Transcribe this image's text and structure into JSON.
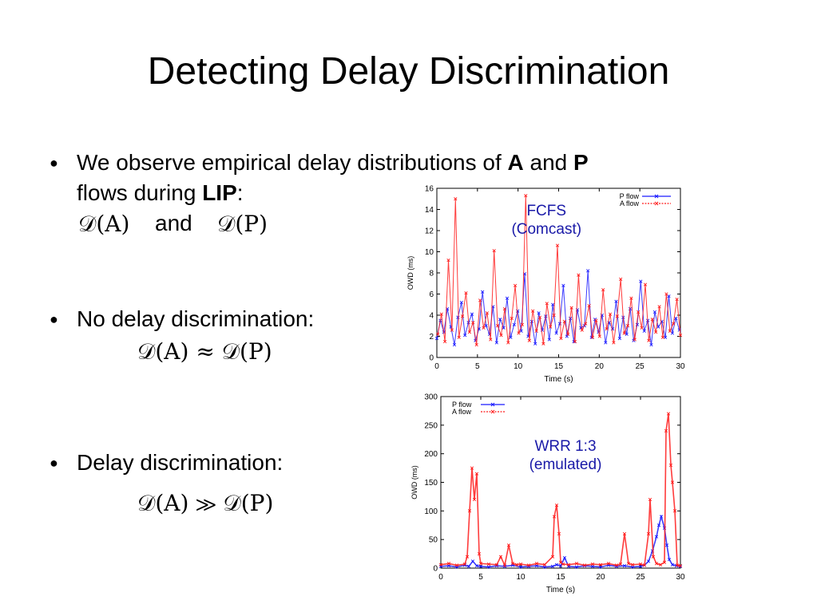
{
  "slide": {
    "title": "Detecting Delay Discrimination",
    "bullet1": {
      "text_before": "We observe empirical delay distributions of ",
      "bold_a": "A",
      "text_and": " and ",
      "bold_p": "P",
      "line2_before": "flows during ",
      "bold_lip": "LIP",
      "colon": ":",
      "math_a": "𝒟(A)",
      "and_word": "and",
      "math_p": "𝒟(P)"
    },
    "bullet2": {
      "text": "No delay discrimination:",
      "math": "𝒟(A) ≈ 𝒟(P)"
    },
    "bullet3": {
      "text": "Delay discrimination:",
      "math": "𝒟(A) ≫ 𝒟(P)"
    },
    "bullet_symbol": "●"
  },
  "colors": {
    "p_flow": "#1a1aff",
    "a_flow": "#ff1a1a",
    "annotation": "#1a1aa8"
  },
  "chart_data": [
    {
      "type": "line",
      "annotation": [
        "FCFS",
        "(Comcast)"
      ],
      "xlabel": "Time (s)",
      "ylabel": "OWD (ms)",
      "xlim": [
        0,
        30
      ],
      "ylim": [
        0,
        16
      ],
      "xticks": [
        "0",
        "5",
        "10",
        "15",
        "20",
        "25",
        "30"
      ],
      "yticks": [
        "0",
        "2",
        "4",
        "6",
        "8",
        "10",
        "12",
        "14",
        "16"
      ],
      "legend": "top-right",
      "series": [
        {
          "name": "P flow",
          "color": "#1a1aff",
          "values": [
            1.8,
            3.5,
            2.4,
            4.6,
            2.9,
            1.2,
            3.8,
            5.2,
            2.1,
            3.3,
            4.1,
            1.6,
            2.7,
            6.2,
            3.0,
            2.2,
            4.8,
            1.4,
            3.6,
            2.8,
            5.6,
            1.9,
            3.1,
            4.4,
            2.5,
            7.9,
            2.0,
            3.4,
            1.3,
            4.2,
            2.6,
            3.9,
            1.7,
            5.0,
            2.3,
            3.2,
            6.8,
            2.0,
            3.7,
            1.5,
            4.5,
            2.8,
            3.0,
            8.2,
            1.9,
            3.6,
            2.4,
            4.0,
            1.4,
            3.3,
            2.7,
            5.3,
            1.8,
            3.8,
            2.2,
            4.6,
            1.6,
            3.1,
            7.2,
            2.5,
            3.5,
            1.2,
            4.3,
            2.9,
            3.4,
            1.9,
            5.8,
            2.3,
            3.7,
            2.6
          ]
        },
        {
          "name": "A flow",
          "color": "#ff1a1a",
          "values": [
            2.2,
            4.1,
            1.5,
            9.2,
            2.6,
            15.0,
            1.9,
            3.9,
            6.1,
            2.4,
            3.3,
            1.2,
            5.4,
            2.8,
            4.2,
            1.7,
            10.1,
            3.0,
            2.1,
            4.6,
            1.4,
            3.7,
            6.8,
            2.3,
            3.1,
            15.3,
            1.6,
            4.4,
            2.5,
            3.8,
            1.3,
            5.1,
            2.9,
            4.0,
            10.6,
            1.8,
            3.4,
            2.2,
            4.7,
            1.5,
            7.8,
            2.6,
            3.2,
            4.9,
            1.9,
            3.5,
            2.0,
            6.4,
            2.7,
            4.1,
            1.4,
            3.9,
            7.4,
            2.3,
            3.0,
            5.6,
            1.7,
            4.3,
            2.8,
            6.9,
            1.6,
            3.6,
            2.4,
            4.8,
            1.9,
            6.0,
            2.5,
            3.2,
            5.5,
            2.1
          ]
        }
      ]
    },
    {
      "type": "line",
      "annotation": [
        "WRR 1:3",
        "(emulated)"
      ],
      "xlabel": "Time (s)",
      "ylabel": "OWD (ms)",
      "xlim": [
        0,
        30
      ],
      "ylim": [
        0,
        300
      ],
      "xticks": [
        "0",
        "5",
        "10",
        "15",
        "20",
        "25",
        "30"
      ],
      "yticks": [
        "0",
        "50",
        "100",
        "150",
        "200",
        "250",
        "300"
      ],
      "legend": "top-left",
      "series": [
        {
          "name": "P flow",
          "color": "#1a1aff",
          "x": [
            0,
            1,
            2,
            3,
            3.5,
            4,
            4.5,
            5,
            6,
            7,
            8,
            9,
            10,
            11,
            12,
            13,
            14,
            14.5,
            15,
            15.5,
            16,
            17,
            18,
            19,
            20,
            21,
            22,
            23,
            24,
            25,
            25.5,
            26,
            26.5,
            27,
            27.3,
            27.6,
            28,
            28.3,
            28.6,
            29,
            29.5,
            30
          ],
          "y": [
            3,
            4,
            2,
            5,
            3,
            12,
            4,
            3,
            2,
            4,
            3,
            5,
            2,
            3,
            4,
            2,
            3,
            6,
            4,
            18,
            3,
            2,
            4,
            3,
            2,
            5,
            3,
            4,
            2,
            3,
            5,
            12,
            30,
            55,
            75,
            90,
            70,
            40,
            15,
            6,
            4,
            3
          ]
        },
        {
          "name": "A flow",
          "color": "#ff1a1a",
          "x": [
            0,
            1,
            2,
            3,
            3.3,
            3.6,
            3.9,
            4.2,
            4.5,
            4.8,
            5,
            6,
            7,
            7.5,
            8,
            8.5,
            9,
            9.5,
            10,
            11,
            12,
            13,
            14,
            14.2,
            14.5,
            14.8,
            15,
            15.3,
            16,
            17,
            18,
            19,
            20,
            21,
            22,
            22.5,
            23,
            23.5,
            24,
            25,
            25.5,
            26,
            26.2,
            26.6,
            27,
            27.5,
            28,
            28.2,
            28.5,
            28.8,
            29,
            29.3,
            29.6,
            30
          ],
          "y": [
            6,
            8,
            5,
            7,
            20,
            100,
            175,
            120,
            165,
            25,
            8,
            7,
            6,
            20,
            5,
            40,
            8,
            6,
            7,
            5,
            8,
            6,
            20,
            90,
            110,
            60,
            10,
            7,
            6,
            8,
            5,
            7,
            6,
            8,
            5,
            7,
            60,
            8,
            6,
            7,
            5,
            60,
            120,
            20,
            8,
            6,
            10,
            240,
            270,
            180,
            150,
            100,
            5,
            4
          ]
        }
      ]
    }
  ]
}
